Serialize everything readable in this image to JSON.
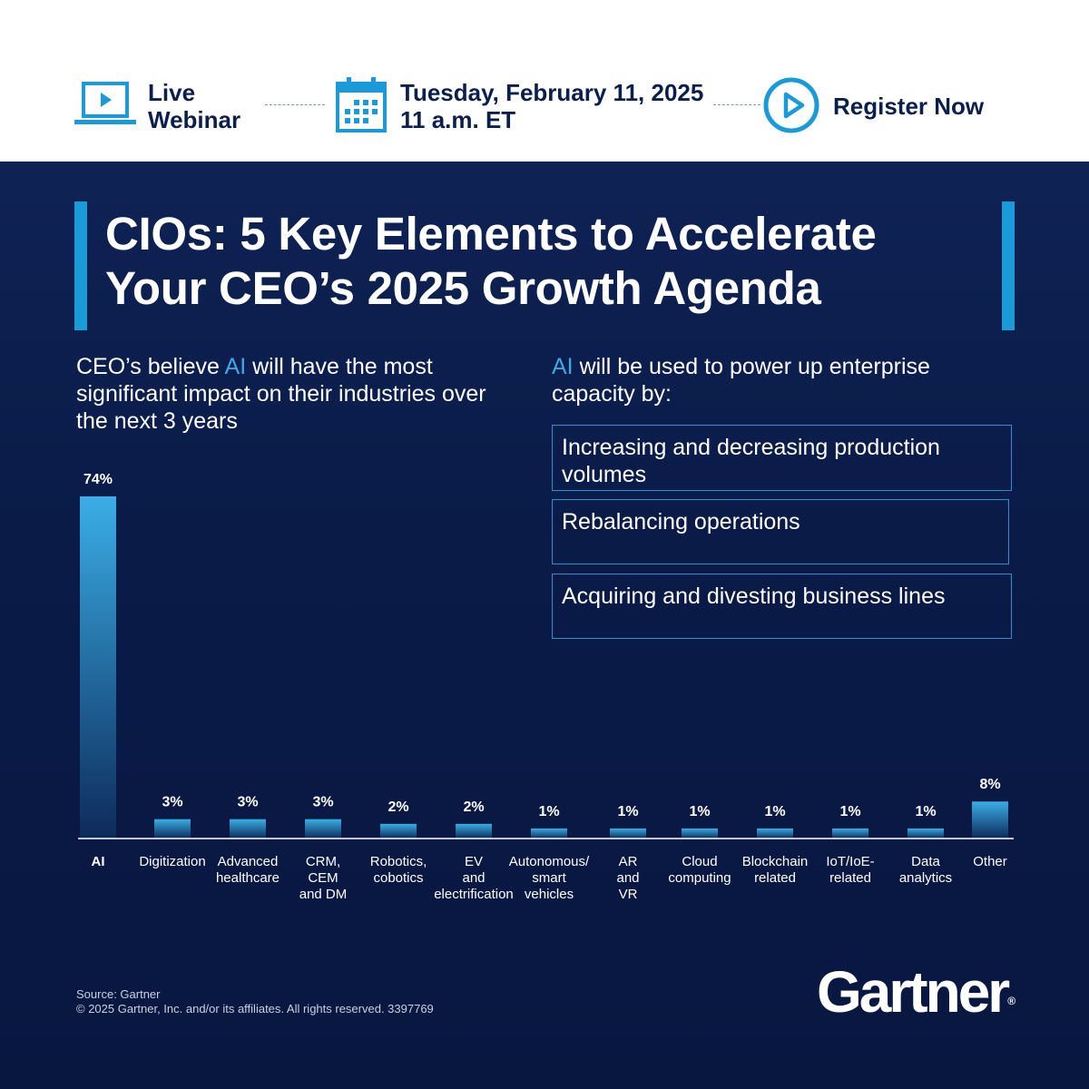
{
  "banner": {
    "live_line1": "Live",
    "live_line2": "Webinar",
    "date": "Tuesday, February 11, 2025",
    "time": "11 a.m. ET",
    "register": "Register Now",
    "icons": [
      "laptop-play-icon",
      "calendar-icon",
      "play-circle-icon"
    ]
  },
  "title": {
    "line1": "CIOs: 5 Key Elements to Accelerate",
    "line2": "Your CEO’s 2025 Growth Agenda"
  },
  "left_subtitle": {
    "pre": "CEO’s believe ",
    "highlight": "AI",
    "post": " will have the most significant impact on their industries over the next 3 years"
  },
  "right_subtitle": {
    "highlight": "AI",
    "post": " will be used to power up enterprise capacity by:"
  },
  "capacity_items": [
    "Increasing and decreasing production volumes",
    "Rebalancing operations",
    "Acquiring and divesting business lines"
  ],
  "chart_data": {
    "type": "bar",
    "categories": [
      "AI",
      "Digitization",
      "Advanced\nhealthcare",
      "CRM,\nCEM\nand DM",
      "Robotics,\ncobotics",
      "EV\nand\nelectrification",
      "Autonomous/\nsmart\nvehicles",
      "AR\nand\nVR",
      "Cloud\ncomputing",
      "Blockchain\nrelated",
      "IoT/IoE-\nrelated",
      "Data\nanalytics",
      "Other"
    ],
    "values": [
      74,
      3,
      3,
      3,
      2,
      2,
      1,
      1,
      1,
      1,
      1,
      1,
      8
    ],
    "data_labels": [
      "74%",
      "3%",
      "3%",
      "3%",
      "2%",
      "2%",
      "1%",
      "1%",
      "1%",
      "1%",
      "1%",
      "1%",
      "8%"
    ],
    "ylim": [
      0,
      74
    ],
    "grid": false,
    "colors": {
      "bar_top": "#3aaee6",
      "bar_bottom": "#0d2a5a"
    }
  },
  "footer": {
    "source": "Source: Gartner",
    "copyright": "© 2025 Gartner, Inc. and/or its affiliates. All rights reserved. 3397769",
    "logo": "Gartner",
    "logo_mark": "®"
  },
  "colors": {
    "accent": "#1a9ad6",
    "navy_text": "#0b1f4d",
    "highlight": "#3ea9e2",
    "background": "#0a1b48"
  }
}
